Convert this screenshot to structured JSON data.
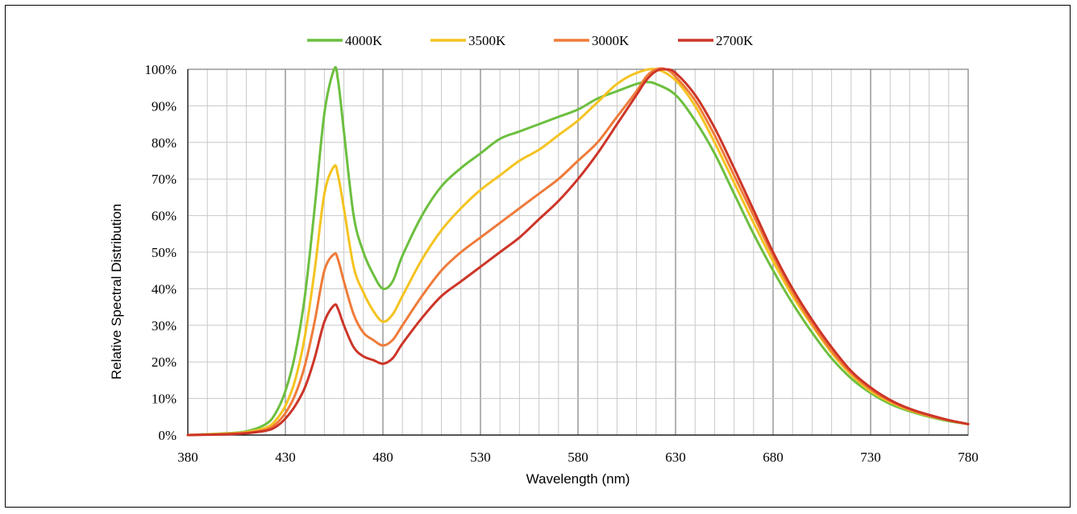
{
  "chart_data": {
    "type": "line",
    "title": "",
    "xlabel": "Wavelength (nm)",
    "ylabel": "Relative Spectral Distribution",
    "xlim": [
      380,
      780
    ],
    "ylim": [
      0,
      100
    ],
    "x_ticks": [
      380,
      430,
      480,
      530,
      580,
      630,
      680,
      730,
      780
    ],
    "x_tick_labels": [
      "380",
      "430",
      "480",
      "530",
      "580",
      "630",
      "680",
      "730",
      "780"
    ],
    "y_ticks": [
      0,
      10,
      20,
      30,
      40,
      50,
      60,
      70,
      80,
      90,
      100
    ],
    "y_tick_labels": [
      "0%",
      "10%",
      "20%",
      "30%",
      "40%",
      "50%",
      "60%",
      "70%",
      "80%",
      "90%",
      "100%"
    ],
    "grid": true,
    "grid_minor_x_step": 10,
    "legend_position": "top",
    "series": [
      {
        "name": "4000K",
        "color": "#6cbf3f",
        "points": [
          [
            380,
            0
          ],
          [
            400,
            0.5
          ],
          [
            410,
            1
          ],
          [
            420,
            3
          ],
          [
            425,
            6
          ],
          [
            430,
            12
          ],
          [
            435,
            22
          ],
          [
            440,
            38
          ],
          [
            445,
            62
          ],
          [
            450,
            88
          ],
          [
            455,
            100
          ],
          [
            457,
            97
          ],
          [
            460,
            83
          ],
          [
            465,
            60
          ],
          [
            470,
            50
          ],
          [
            475,
            44
          ],
          [
            480,
            40
          ],
          [
            485,
            42
          ],
          [
            490,
            49
          ],
          [
            500,
            60
          ],
          [
            510,
            68
          ],
          [
            520,
            73
          ],
          [
            530,
            77
          ],
          [
            540,
            81
          ],
          [
            550,
            83
          ],
          [
            560,
            85
          ],
          [
            570,
            87
          ],
          [
            580,
            89
          ],
          [
            590,
            92
          ],
          [
            600,
            94
          ],
          [
            610,
            96
          ],
          [
            615,
            96.5
          ],
          [
            620,
            96
          ],
          [
            630,
            93
          ],
          [
            640,
            86
          ],
          [
            650,
            77
          ],
          [
            660,
            66
          ],
          [
            670,
            55
          ],
          [
            680,
            45
          ],
          [
            690,
            36
          ],
          [
            700,
            28
          ],
          [
            710,
            21
          ],
          [
            720,
            15.5
          ],
          [
            730,
            11.5
          ],
          [
            740,
            8.5
          ],
          [
            750,
            6.5
          ],
          [
            760,
            5
          ],
          [
            770,
            3.8
          ],
          [
            780,
            3
          ]
        ]
      },
      {
        "name": "3500K",
        "color": "#f4c320",
        "points": [
          [
            380,
            0
          ],
          [
            400,
            0.4
          ],
          [
            410,
            0.8
          ],
          [
            420,
            2
          ],
          [
            425,
            4
          ],
          [
            430,
            8
          ],
          [
            435,
            15
          ],
          [
            440,
            27
          ],
          [
            445,
            45
          ],
          [
            450,
            66
          ],
          [
            455,
            73.5
          ],
          [
            457,
            71
          ],
          [
            460,
            62
          ],
          [
            465,
            46
          ],
          [
            470,
            39
          ],
          [
            475,
            34
          ],
          [
            480,
            31
          ],
          [
            485,
            33
          ],
          [
            490,
            38
          ],
          [
            500,
            48
          ],
          [
            510,
            56
          ],
          [
            520,
            62
          ],
          [
            530,
            67
          ],
          [
            540,
            71
          ],
          [
            550,
            75
          ],
          [
            560,
            78
          ],
          [
            570,
            82
          ],
          [
            580,
            86
          ],
          [
            590,
            91
          ],
          [
            600,
            96
          ],
          [
            610,
            99
          ],
          [
            620,
            100
          ],
          [
            630,
            97
          ],
          [
            640,
            90
          ],
          [
            650,
            80
          ],
          [
            660,
            69
          ],
          [
            670,
            58
          ],
          [
            680,
            47.5
          ],
          [
            690,
            38
          ],
          [
            700,
            30
          ],
          [
            710,
            22.5
          ],
          [
            720,
            16.5
          ],
          [
            730,
            12
          ],
          [
            740,
            9
          ],
          [
            750,
            6.8
          ],
          [
            760,
            5.2
          ],
          [
            770,
            4
          ],
          [
            780,
            3
          ]
        ]
      },
      {
        "name": "3000K",
        "color": "#ef7b39",
        "points": [
          [
            380,
            0
          ],
          [
            400,
            0.3
          ],
          [
            410,
            0.6
          ],
          [
            420,
            1.5
          ],
          [
            425,
            3
          ],
          [
            430,
            6
          ],
          [
            435,
            11
          ],
          [
            440,
            19
          ],
          [
            445,
            31
          ],
          [
            450,
            45
          ],
          [
            455,
            49.5
          ],
          [
            457,
            48
          ],
          [
            460,
            42
          ],
          [
            465,
            33
          ],
          [
            470,
            28
          ],
          [
            475,
            26
          ],
          [
            480,
            24.5
          ],
          [
            485,
            26
          ],
          [
            490,
            30
          ],
          [
            500,
            38
          ],
          [
            510,
            45
          ],
          [
            520,
            50
          ],
          [
            530,
            54
          ],
          [
            540,
            58
          ],
          [
            550,
            62
          ],
          [
            560,
            66
          ],
          [
            570,
            70
          ],
          [
            580,
            75
          ],
          [
            590,
            80
          ],
          [
            600,
            87
          ],
          [
            610,
            94
          ],
          [
            615,
            98
          ],
          [
            620,
            100
          ],
          [
            625,
            100
          ],
          [
            630,
            98
          ],
          [
            640,
            91.5
          ],
          [
            650,
            82
          ],
          [
            660,
            71
          ],
          [
            670,
            60
          ],
          [
            680,
            49
          ],
          [
            690,
            39
          ],
          [
            700,
            30.5
          ],
          [
            710,
            23
          ],
          [
            720,
            17
          ],
          [
            730,
            12.5
          ],
          [
            740,
            9.3
          ],
          [
            750,
            7
          ],
          [
            760,
            5.3
          ],
          [
            770,
            4
          ],
          [
            780,
            3
          ]
        ]
      },
      {
        "name": "2700K",
        "color": "#cc3528",
        "points": [
          [
            380,
            0
          ],
          [
            400,
            0.2
          ],
          [
            410,
            0.5
          ],
          [
            420,
            1.2
          ],
          [
            425,
            2.2
          ],
          [
            430,
            4.5
          ],
          [
            435,
            8
          ],
          [
            440,
            13
          ],
          [
            445,
            21
          ],
          [
            450,
            31
          ],
          [
            455,
            35.5
          ],
          [
            457,
            34.5
          ],
          [
            460,
            30
          ],
          [
            465,
            24
          ],
          [
            470,
            21.5
          ],
          [
            475,
            20.5
          ],
          [
            480,
            19.5
          ],
          [
            485,
            21
          ],
          [
            490,
            25
          ],
          [
            500,
            32
          ],
          [
            510,
            38
          ],
          [
            520,
            42
          ],
          [
            530,
            46
          ],
          [
            540,
            50
          ],
          [
            550,
            54
          ],
          [
            560,
            59
          ],
          [
            570,
            64
          ],
          [
            580,
            70
          ],
          [
            590,
            77
          ],
          [
            600,
            85
          ],
          [
            610,
            93
          ],
          [
            615,
            97
          ],
          [
            620,
            99.5
          ],
          [
            625,
            100
          ],
          [
            630,
            99
          ],
          [
            640,
            93
          ],
          [
            650,
            84
          ],
          [
            660,
            73
          ],
          [
            670,
            61.5
          ],
          [
            680,
            50
          ],
          [
            690,
            40
          ],
          [
            700,
            31.5
          ],
          [
            710,
            24
          ],
          [
            720,
            17.5
          ],
          [
            730,
            13
          ],
          [
            740,
            9.6
          ],
          [
            750,
            7.2
          ],
          [
            760,
            5.5
          ],
          [
            770,
            4.1
          ],
          [
            780,
            3
          ]
        ]
      }
    ]
  }
}
